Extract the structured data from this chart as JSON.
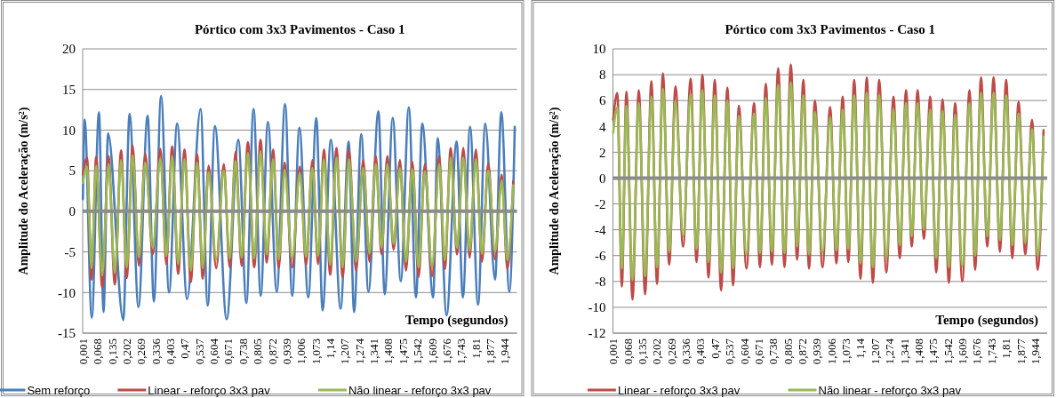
{
  "chart_data": [
    {
      "type": "line",
      "title": "Pórtico com 3x3 Pavimentos - Caso 1",
      "xlabel": "Tempo (segundos)",
      "ylabel": "Amplitude do Aceleração (m/s²)",
      "xlim": [
        0,
        2
      ],
      "xticks": [
        {
          "value": 0.001,
          "label": "0,001"
        },
        {
          "value": 0.068,
          "label": "0,068"
        },
        {
          "value": 0.135,
          "label": "0,135"
        },
        {
          "value": 0.202,
          "label": "0,202"
        },
        {
          "value": 0.269,
          "label": "0,269"
        },
        {
          "value": 0.336,
          "label": "0,336"
        },
        {
          "value": 0.403,
          "label": "0,403"
        },
        {
          "value": 0.47,
          "label": "0,47"
        },
        {
          "value": 0.537,
          "label": "0,537"
        },
        {
          "value": 0.604,
          "label": "0,604"
        },
        {
          "value": 0.671,
          "label": "0,671"
        },
        {
          "value": 0.738,
          "label": "0,738"
        },
        {
          "value": 0.805,
          "label": "0,805"
        },
        {
          "value": 0.872,
          "label": "0,872"
        },
        {
          "value": 0.939,
          "label": "0,939"
        },
        {
          "value": 1.006,
          "label": "1,006"
        },
        {
          "value": 1.073,
          "label": "1,073"
        },
        {
          "value": 1.14,
          "label": "1,14"
        },
        {
          "value": 1.207,
          "label": "1,207"
        },
        {
          "value": 1.274,
          "label": "1,274"
        },
        {
          "value": 1.341,
          "label": "1,341"
        },
        {
          "value": 1.408,
          "label": "1,408"
        },
        {
          "value": 1.475,
          "label": "1,475"
        },
        {
          "value": 1.542,
          "label": "1,542"
        },
        {
          "value": 1.609,
          "label": "1,609"
        },
        {
          "value": 1.676,
          "label": "1,676"
        },
        {
          "value": 1.743,
          "label": "1,743"
        },
        {
          "value": 1.81,
          "label": "1,81"
        },
        {
          "value": 1.877,
          "label": "1,877"
        },
        {
          "value": 1.944,
          "label": "1,944"
        }
      ],
      "ylim": [
        -15,
        20
      ],
      "yticks": [
        -15,
        -10,
        -5,
        0,
        5,
        10,
        15,
        20
      ],
      "grid": "y",
      "legend": "bottom",
      "marker": "none",
      "line_style": "solid",
      "series": [
        {
          "name": "Sem reforço",
          "color": "#4a7ebb",
          "x": [
            0.001,
            0.009,
            0.042,
            0.075,
            0.096,
            0.117,
            0.187,
            0.216,
            0.257,
            0.299,
            0.328,
            0.361,
            0.398,
            0.435,
            0.481,
            0.543,
            0.576,
            0.609,
            0.663,
            0.717,
            0.754,
            0.787,
            0.82,
            0.853,
            0.894,
            0.932,
            0.965,
            0.998,
            1.039,
            1.076,
            1.105,
            1.143,
            1.188,
            1.225,
            1.25,
            1.283,
            1.316,
            1.362,
            1.391,
            1.428,
            1.465,
            1.502,
            1.535,
            1.564,
            1.614,
            1.635,
            1.676,
            1.722,
            1.751,
            1.784,
            1.821,
            1.854,
            1.899,
            1.928,
            1.965,
            1.99
          ],
          "values": [
            1.5,
            11.3,
            -13.1,
            12.2,
            -12.4,
            9.6,
            -13.4,
            12.0,
            -11.8,
            11.8,
            -11.1,
            14.2,
            -10.0,
            10.8,
            -10.8,
            12.6,
            -11.6,
            10.5,
            -13.3,
            8.8,
            -11.3,
            12.6,
            -10.4,
            11.0,
            -9.9,
            13.2,
            -10.4,
            10.3,
            -10.6,
            11.5,
            -12.2,
            8.8,
            -12.0,
            8.6,
            -12.4,
            9.5,
            -9.9,
            12.3,
            -10.2,
            11.5,
            -8.6,
            12.8,
            -10.6,
            10.8,
            -10.6,
            9.0,
            -12.8,
            8.6,
            -10.6,
            10.4,
            -11.5,
            10.8,
            -8.4,
            12.2,
            -9.9,
            10.4
          ]
        },
        {
          "name": "Linear - reforço 3x3 pav",
          "color": "#be4b48",
          "x": [
            0.001,
            0.02,
            0.041,
            0.062,
            0.09,
            0.119,
            0.148,
            0.177,
            0.203,
            0.23,
            0.259,
            0.288,
            0.323,
            0.358,
            0.385,
            0.412,
            0.44,
            0.469,
            0.498,
            0.527,
            0.553,
            0.58,
            0.615,
            0.65,
            0.677,
            0.704,
            0.732,
            0.761,
            0.79,
            0.819,
            0.848,
            0.877,
            0.903,
            0.93,
            0.965,
            1.0,
            1.029,
            1.058,
            1.084,
            1.111,
            1.14,
            1.169,
            1.197,
            1.226,
            1.259,
            1.292,
            1.321,
            1.35,
            1.376,
            1.403,
            1.432,
            1.461,
            1.489,
            1.518,
            1.547,
            1.576,
            1.609,
            1.642,
            1.668,
            1.695,
            1.724,
            1.753,
            1.782,
            1.811,
            1.839,
            1.868,
            1.899,
            1.93,
            1.956,
            1.983
          ],
          "values": [
            4.5,
            6.6,
            -8.4,
            6.7,
            -9.4,
            6.8,
            -9.0,
            7.5,
            -8.2,
            8.1,
            -6.7,
            7.1,
            -5.3,
            7.7,
            -6.5,
            8.0,
            -7.7,
            7.6,
            -8.7,
            7.0,
            -8.3,
            5.6,
            -7.0,
            5.8,
            -6.9,
            7.3,
            -6.7,
            8.5,
            -6.9,
            8.8,
            -6.3,
            7.6,
            -7.0,
            6.0,
            -6.9,
            5.5,
            -6.6,
            6.3,
            -6.5,
            7.6,
            -7.8,
            7.8,
            -8.1,
            7.6,
            -7.3,
            6.3,
            -6.2,
            6.8,
            -5.3,
            6.8,
            -4.7,
            6.3,
            -7.3,
            6.1,
            -8.1,
            5.8,
            -8.0,
            6.8,
            -7.1,
            7.8,
            -5.3,
            7.8,
            -5.7,
            7.6,
            -6.2,
            5.9,
            -5.9,
            4.5,
            -7.1,
            3.7
          ]
        },
        {
          "name": "Não linear - reforço  3x3 pav",
          "color": "#98b954",
          "x": [
            0.001,
            0.02,
            0.041,
            0.062,
            0.09,
            0.119,
            0.148,
            0.177,
            0.203,
            0.23,
            0.259,
            0.288,
            0.323,
            0.358,
            0.385,
            0.412,
            0.44,
            0.469,
            0.498,
            0.527,
            0.553,
            0.58,
            0.615,
            0.65,
            0.677,
            0.704,
            0.732,
            0.761,
            0.79,
            0.819,
            0.848,
            0.877,
            0.903,
            0.93,
            0.965,
            1.0,
            1.029,
            1.058,
            1.084,
            1.111,
            1.14,
            1.169,
            1.197,
            1.226,
            1.259,
            1.292,
            1.321,
            1.35,
            1.376,
            1.403,
            1.432,
            1.461,
            1.489,
            1.518,
            1.547,
            1.576,
            1.609,
            1.642,
            1.668,
            1.695,
            1.724,
            1.753,
            1.782,
            1.811,
            1.839,
            1.868,
            1.899,
            1.93,
            1.956,
            1.983
          ],
          "values": [
            3.5,
            5.5,
            -7.0,
            5.6,
            -7.9,
            5.8,
            -7.6,
            6.3,
            -6.9,
            6.9,
            -5.7,
            6.0,
            -4.5,
            6.5,
            -5.5,
            6.8,
            -6.5,
            6.4,
            -7.3,
            6.0,
            -7.0,
            4.8,
            -5.9,
            5.0,
            -5.8,
            6.2,
            -5.7,
            7.2,
            -5.8,
            7.4,
            -5.3,
            6.4,
            -5.9,
            5.1,
            -5.8,
            4.7,
            -5.6,
            5.3,
            -5.5,
            6.4,
            -6.6,
            6.6,
            -6.9,
            6.4,
            -6.2,
            5.3,
            -5.2,
            5.8,
            -4.5,
            5.8,
            -4.0,
            5.3,
            -6.2,
            5.2,
            -6.9,
            4.9,
            -6.8,
            5.8,
            -6.0,
            6.6,
            -4.5,
            6.6,
            -4.8,
            6.4,
            -5.2,
            5.0,
            -5.0,
            3.8,
            -6.0,
            3.2
          ]
        }
      ]
    },
    {
      "type": "line",
      "title": "Pórtico com 3x3 Pavimentos - Caso 1",
      "xlabel": "Tempo (segundos)",
      "ylabel": "Amplitude do Aceleração (m/s²)",
      "xlim": [
        0,
        2
      ],
      "xticks": [
        {
          "value": 0.001,
          "label": "0,001"
        },
        {
          "value": 0.068,
          "label": "0,068"
        },
        {
          "value": 0.135,
          "label": "0,135"
        },
        {
          "value": 0.202,
          "label": "0,202"
        },
        {
          "value": 0.269,
          "label": "0,269"
        },
        {
          "value": 0.336,
          "label": "0,336"
        },
        {
          "value": 0.403,
          "label": "0,403"
        },
        {
          "value": 0.47,
          "label": "0,47"
        },
        {
          "value": 0.537,
          "label": "0,537"
        },
        {
          "value": 0.604,
          "label": "0,604"
        },
        {
          "value": 0.671,
          "label": "0,671"
        },
        {
          "value": 0.738,
          "label": "0,738"
        },
        {
          "value": 0.805,
          "label": "0,805"
        },
        {
          "value": 0.872,
          "label": "0,872"
        },
        {
          "value": 0.939,
          "label": "0,939"
        },
        {
          "value": 1.006,
          "label": "1,006"
        },
        {
          "value": 1.073,
          "label": "1,073"
        },
        {
          "value": 1.14,
          "label": "1,14"
        },
        {
          "value": 1.207,
          "label": "1,207"
        },
        {
          "value": 1.274,
          "label": "1,274"
        },
        {
          "value": 1.341,
          "label": "1,341"
        },
        {
          "value": 1.408,
          "label": "1,408"
        },
        {
          "value": 1.475,
          "label": "1,475"
        },
        {
          "value": 1.542,
          "label": "1,542"
        },
        {
          "value": 1.609,
          "label": "1,609"
        },
        {
          "value": 1.676,
          "label": "1,676"
        },
        {
          "value": 1.743,
          "label": "1,743"
        },
        {
          "value": 1.81,
          "label": "1,81"
        },
        {
          "value": 1.877,
          "label": "1,877"
        },
        {
          "value": 1.944,
          "label": "1,944"
        }
      ],
      "ylim": [
        -12,
        10
      ],
      "yticks": [
        -12,
        -10,
        -8,
        -6,
        -4,
        -2,
        0,
        2,
        4,
        6,
        8,
        10
      ],
      "grid": "y",
      "legend": "bottom",
      "marker": "none",
      "line_style": "solid",
      "series": [
        {
          "name": "Linear - reforço 3x3 pav",
          "color": "#be4b48",
          "x": [
            0.001,
            0.02,
            0.041,
            0.062,
            0.09,
            0.119,
            0.148,
            0.177,
            0.203,
            0.23,
            0.259,
            0.288,
            0.323,
            0.358,
            0.385,
            0.412,
            0.44,
            0.469,
            0.498,
            0.527,
            0.553,
            0.58,
            0.615,
            0.65,
            0.677,
            0.704,
            0.732,
            0.761,
            0.79,
            0.819,
            0.848,
            0.877,
            0.903,
            0.93,
            0.965,
            1.0,
            1.029,
            1.058,
            1.084,
            1.111,
            1.14,
            1.169,
            1.197,
            1.226,
            1.259,
            1.292,
            1.321,
            1.35,
            1.376,
            1.403,
            1.432,
            1.461,
            1.489,
            1.518,
            1.547,
            1.576,
            1.609,
            1.642,
            1.668,
            1.695,
            1.724,
            1.753,
            1.782,
            1.811,
            1.839,
            1.868,
            1.899,
            1.93,
            1.956,
            1.983
          ],
          "values": [
            4.5,
            6.6,
            -8.4,
            6.7,
            -9.4,
            6.8,
            -9.0,
            7.5,
            -8.2,
            8.1,
            -6.7,
            7.1,
            -5.3,
            7.7,
            -6.5,
            8.0,
            -7.7,
            7.6,
            -8.7,
            7.0,
            -8.3,
            5.6,
            -7.0,
            5.8,
            -6.9,
            7.3,
            -6.7,
            8.5,
            -6.9,
            8.8,
            -6.3,
            7.6,
            -7.0,
            6.0,
            -6.9,
            5.5,
            -6.6,
            6.3,
            -6.5,
            7.6,
            -7.8,
            7.8,
            -8.1,
            7.6,
            -7.3,
            6.3,
            -6.2,
            6.8,
            -5.3,
            6.8,
            -4.7,
            6.3,
            -7.3,
            6.1,
            -8.1,
            5.8,
            -8.0,
            6.8,
            -7.1,
            7.8,
            -5.3,
            7.8,
            -5.7,
            7.6,
            -6.2,
            5.9,
            -5.9,
            4.5,
            -7.1,
            3.7
          ]
        },
        {
          "name": "Não linear - reforço  3x3 pav",
          "color": "#98b954",
          "x": [
            0.001,
            0.02,
            0.041,
            0.062,
            0.09,
            0.119,
            0.148,
            0.177,
            0.203,
            0.23,
            0.259,
            0.288,
            0.323,
            0.358,
            0.385,
            0.412,
            0.44,
            0.469,
            0.498,
            0.527,
            0.553,
            0.58,
            0.615,
            0.65,
            0.677,
            0.704,
            0.732,
            0.761,
            0.79,
            0.819,
            0.848,
            0.877,
            0.903,
            0.93,
            0.965,
            1.0,
            1.029,
            1.058,
            1.084,
            1.111,
            1.14,
            1.169,
            1.197,
            1.226,
            1.259,
            1.292,
            1.321,
            1.35,
            1.376,
            1.403,
            1.432,
            1.461,
            1.489,
            1.518,
            1.547,
            1.576,
            1.609,
            1.642,
            1.668,
            1.695,
            1.724,
            1.753,
            1.782,
            1.811,
            1.839,
            1.868,
            1.899,
            1.93,
            1.956,
            1.983
          ],
          "values": [
            3.5,
            5.5,
            -7.0,
            5.6,
            -7.9,
            5.8,
            -7.6,
            6.3,
            -6.9,
            6.9,
            -5.7,
            6.0,
            -4.5,
            6.5,
            -5.5,
            6.8,
            -6.5,
            6.4,
            -7.3,
            6.0,
            -7.0,
            4.8,
            -5.9,
            5.0,
            -5.8,
            6.2,
            -5.7,
            7.2,
            -5.8,
            7.4,
            -5.3,
            6.4,
            -5.9,
            5.1,
            -5.8,
            4.7,
            -5.6,
            5.3,
            -5.5,
            6.4,
            -6.6,
            6.6,
            -6.9,
            6.4,
            -6.2,
            5.3,
            -5.2,
            5.8,
            -4.5,
            5.8,
            -4.0,
            5.3,
            -6.2,
            5.2,
            -6.9,
            4.9,
            -6.8,
            5.8,
            -6.0,
            6.6,
            -4.5,
            6.6,
            -4.8,
            6.4,
            -5.2,
            5.0,
            -5.0,
            3.8,
            -6.0,
            3.2
          ]
        }
      ]
    }
  ]
}
